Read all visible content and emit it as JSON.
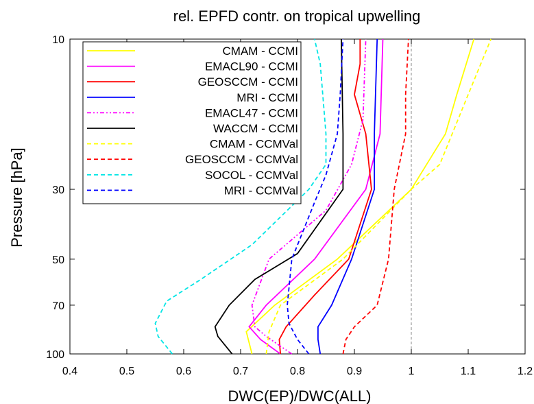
{
  "chart_data": {
    "type": "line",
    "title": "rel. EPFD contr. on tropical upwelling",
    "xlabel": "DWC(EP)/DWC(ALL)",
    "ylabel": "Pressure [hPa]",
    "xlim": [
      0.4,
      1.2
    ],
    "ylim": [
      100,
      10
    ],
    "yscale": "log",
    "x_ticks": [
      0.4,
      0.5,
      0.6,
      0.7,
      0.8,
      0.9,
      1.0,
      1.1,
      1.2
    ],
    "x_tick_labels": [
      "0.4",
      "0.5",
      "0.6",
      "0.7",
      "0.8",
      "0.9",
      "1",
      "1.1",
      "1.2"
    ],
    "y_ticks": [
      10,
      30,
      50,
      70,
      100
    ],
    "y_tick_labels": [
      "10",
      "30",
      "50",
      "70",
      "100"
    ],
    "reference_line": {
      "x": 1.0,
      "style": "dashed",
      "color": "#888888"
    },
    "legend_position": "top-left",
    "series": [
      {
        "name": "CMAM - CCMI",
        "color": "#ffff00",
        "dash": "solid",
        "points": [
          [
            0.72,
            100
          ],
          [
            0.71,
            85
          ],
          [
            0.76,
            70
          ],
          [
            0.87,
            50
          ],
          [
            1.0,
            30
          ],
          [
            1.06,
            20
          ],
          [
            1.08,
            15
          ],
          [
            1.11,
            10
          ]
        ]
      },
      {
        "name": "EMACL90 - CCMI",
        "color": "#ff00ff",
        "dash": "solid",
        "points": [
          [
            0.77,
            100
          ],
          [
            0.735,
            90
          ],
          [
            0.715,
            82
          ],
          [
            0.745,
            70
          ],
          [
            0.83,
            50
          ],
          [
            0.92,
            30
          ],
          [
            0.945,
            20
          ],
          [
            0.95,
            10
          ]
        ]
      },
      {
        "name": "GEOSCCM - CCMI",
        "color": "#ff0000",
        "dash": "solid",
        "points": [
          [
            0.77,
            100
          ],
          [
            0.768,
            90
          ],
          [
            0.78,
            82
          ],
          [
            0.83,
            65
          ],
          [
            0.89,
            50
          ],
          [
            0.93,
            30
          ],
          [
            0.92,
            20
          ],
          [
            0.9,
            15
          ],
          [
            0.91,
            12
          ],
          [
            0.91,
            10
          ]
        ]
      },
      {
        "name": "MRI - CCMI",
        "color": "#0000ff",
        "dash": "solid",
        "points": [
          [
            0.84,
            100
          ],
          [
            0.836,
            90
          ],
          [
            0.836,
            82
          ],
          [
            0.86,
            70
          ],
          [
            0.895,
            50
          ],
          [
            0.935,
            30
          ],
          [
            0.935,
            20
          ],
          [
            0.94,
            10
          ]
        ]
      },
      {
        "name": "EMACL47 - CCMI",
        "color": "#ff00ff",
        "dash": "dashdot",
        "points": [
          [
            0.79,
            100
          ],
          [
            0.745,
            88
          ],
          [
            0.725,
            82
          ],
          [
            0.72,
            70
          ],
          [
            0.75,
            50
          ],
          [
            0.85,
            35
          ],
          [
            0.895,
            25
          ],
          [
            0.915,
            18
          ],
          [
            0.92,
            10
          ]
        ]
      },
      {
        "name": "WACCM - CCMI",
        "color": "#000000",
        "dash": "solid",
        "points": [
          [
            0.685,
            100
          ],
          [
            0.66,
            88
          ],
          [
            0.655,
            82
          ],
          [
            0.68,
            70
          ],
          [
            0.725,
            58
          ],
          [
            0.8,
            48
          ],
          [
            0.88,
            30
          ],
          [
            0.88,
            20
          ],
          [
            0.877,
            10
          ]
        ]
      },
      {
        "name": "CMAM - CCMVal",
        "color": "#ffff00",
        "dash": "dashed",
        "points": [
          [
            0.745,
            100
          ],
          [
            0.75,
            85
          ],
          [
            0.77,
            70
          ],
          [
            0.88,
            50
          ],
          [
            1.0,
            30
          ],
          [
            1.05,
            25
          ],
          [
            1.1,
            15
          ],
          [
            1.14,
            10
          ]
        ]
      },
      {
        "name": "GEOSCCM - CCMVal",
        "color": "#ff0000",
        "dash": "dashed",
        "points": [
          [
            0.88,
            100
          ],
          [
            0.885,
            90
          ],
          [
            0.9,
            82
          ],
          [
            0.94,
            70
          ],
          [
            0.96,
            50
          ],
          [
            0.97,
            30
          ],
          [
            0.99,
            20
          ],
          [
            0.99,
            15
          ],
          [
            0.995,
            10
          ]
        ]
      },
      {
        "name": "SOCOL - CCMVal",
        "color": "#00e5e5",
        "dash": "dashed",
        "points": [
          [
            0.58,
            100
          ],
          [
            0.555,
            88
          ],
          [
            0.55,
            80
          ],
          [
            0.57,
            68
          ],
          [
            0.63,
            58
          ],
          [
            0.72,
            45
          ],
          [
            0.82,
            30
          ],
          [
            0.85,
            25
          ],
          [
            0.85,
            20
          ],
          [
            0.84,
            12
          ],
          [
            0.83,
            10
          ]
        ]
      },
      {
        "name": "MRI - CCMVal",
        "color": "#0000ff",
        "dash": "dashed",
        "points": [
          [
            0.82,
            100
          ],
          [
            0.8,
            90
          ],
          [
            0.785,
            80
          ],
          [
            0.782,
            70
          ],
          [
            0.79,
            50
          ],
          [
            0.83,
            33
          ],
          [
            0.85,
            27
          ],
          [
            0.87,
            20
          ],
          [
            0.875,
            15
          ],
          [
            0.88,
            10
          ]
        ]
      }
    ]
  }
}
